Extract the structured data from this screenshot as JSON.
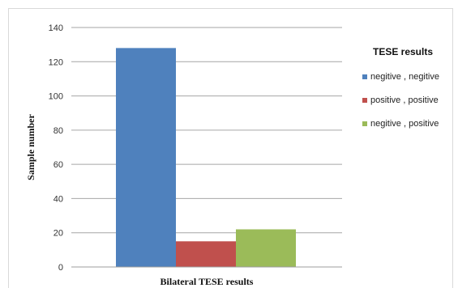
{
  "chart_data": {
    "type": "bar",
    "xlabel": "Bilateral TESE results",
    "ylabel": "Sample number",
    "ylim": [
      0,
      140
    ],
    "yticks": [
      0,
      20,
      40,
      60,
      80,
      100,
      120,
      140
    ],
    "grid": true,
    "legend": {
      "title": "TESE results",
      "position": "right"
    },
    "series": [
      {
        "name": "negitive , negitive",
        "values": [
          128
        ],
        "color": "#4F81BD"
      },
      {
        "name": "positive , positive",
        "values": [
          15
        ],
        "color": "#C0504D"
      },
      {
        "name": "negitive , positive",
        "values": [
          22
        ],
        "color": "#9BBB59"
      }
    ]
  }
}
